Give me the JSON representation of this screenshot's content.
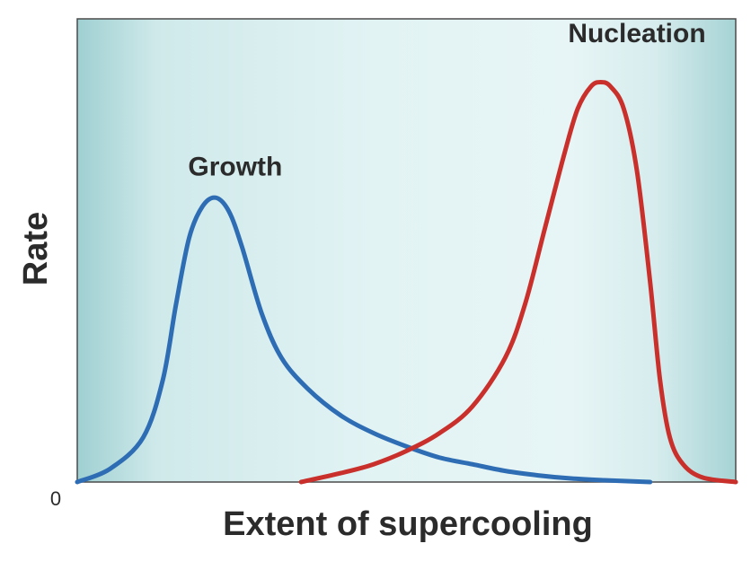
{
  "chart_data": {
    "type": "line",
    "title": "",
    "xlabel": "Extent of supercooling",
    "ylabel": "Rate",
    "x_tick_labels": [],
    "y_tick_labels": [
      "0"
    ],
    "xlim": [
      0,
      100
    ],
    "ylim": [
      0,
      100
    ],
    "grid": false,
    "legend": "none",
    "series": [
      {
        "name": "Growth",
        "color": "#2e6db4",
        "x": [
          0,
          5,
          10,
          13,
          15,
          17,
          19,
          21,
          23,
          25,
          28,
          31,
          35,
          40,
          45,
          50,
          55,
          60,
          65,
          70,
          75,
          80,
          87
        ],
        "y": [
          0,
          3,
          10,
          23,
          40,
          55,
          62,
          64,
          61,
          53,
          38,
          28,
          21,
          15,
          11,
          8,
          5.5,
          4,
          2.5,
          1.5,
          0.8,
          0.4,
          0
        ]
      },
      {
        "name": "Nucleation",
        "color": "#c9302c",
        "x": [
          34,
          40,
          45,
          50,
          55,
          60,
          65,
          68,
          71,
          74,
          76,
          78,
          79.5,
          81,
          83,
          85,
          87,
          88.5,
          90,
          92,
          95,
          100
        ],
        "y": [
          0,
          2,
          4,
          7,
          11,
          17,
          28,
          40,
          57,
          74,
          84,
          89,
          90,
          89,
          84,
          70,
          45,
          23,
          10,
          4,
          1,
          0
        ]
      }
    ],
    "annotations": [
      {
        "text": "Growth",
        "x": 24,
        "y": 69
      },
      {
        "text": "Nucleation",
        "x": 85,
        "y": 99
      }
    ]
  }
}
